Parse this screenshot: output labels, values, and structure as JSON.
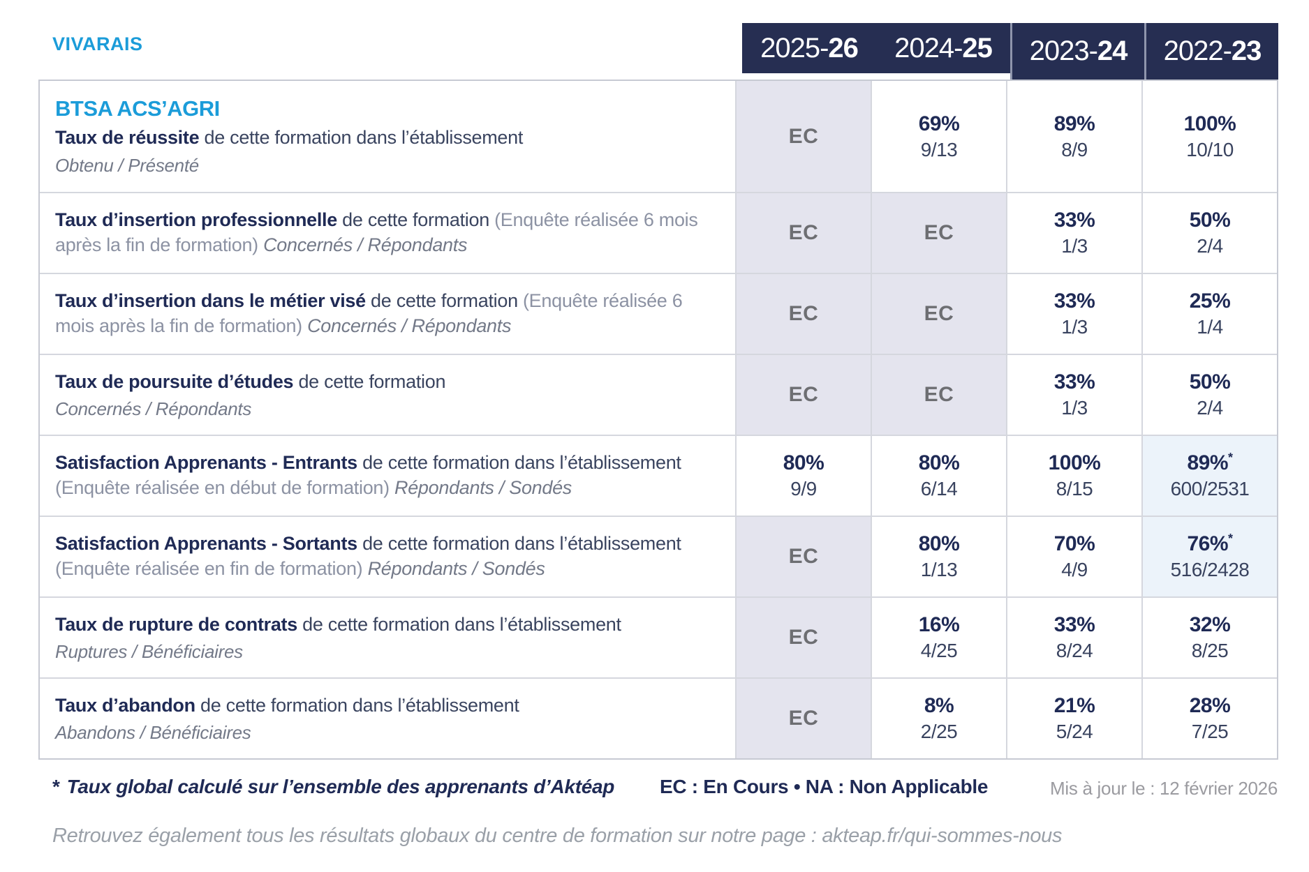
{
  "brand": "VIVARAIS",
  "columns": [
    {
      "label": "2025-26",
      "prefix": "2025-",
      "bold": "26"
    },
    {
      "label": "2024-25",
      "prefix": "2024-",
      "bold": "25"
    },
    {
      "label": "2023-24",
      "prefix": "2023-",
      "bold": "24"
    },
    {
      "label": "2022-23",
      "prefix": "2022-",
      "bold": "23"
    }
  ],
  "program_title": "BTSA ACS’AGRI",
  "rows": [
    {
      "segments": [
        {
          "type": "title",
          "text": "Taux de réussite"
        },
        {
          "type": "normal",
          "text": " de cette formation dans l’établissement"
        }
      ],
      "subline": "Obtenu / Présenté",
      "values": [
        {
          "ec": true,
          "text": "EC"
        },
        {
          "pct": "69%",
          "frac": "9/13"
        },
        {
          "pct": "89%",
          "frac": "8/9"
        },
        {
          "pct": "100%",
          "frac": "10/10"
        }
      ]
    },
    {
      "segments": [
        {
          "type": "title",
          "text": "Taux d’insertion professionnelle"
        },
        {
          "type": "normal",
          "text": " de cette formation "
        },
        {
          "type": "muted",
          "text": "(Enquête réalisée 6 mois après la fin de formation) "
        },
        {
          "type": "italic",
          "text": "Concernés / Répondants"
        }
      ],
      "subline": null,
      "values": [
        {
          "ec": true,
          "text": "EC"
        },
        {
          "ec": true,
          "text": "EC"
        },
        {
          "pct": "33%",
          "frac": "1/3"
        },
        {
          "pct": "50%",
          "frac": "2/4"
        }
      ]
    },
    {
      "segments": [
        {
          "type": "title",
          "text": "Taux d’insertion dans le métier visé"
        },
        {
          "type": "normal",
          "text": " de cette formation "
        },
        {
          "type": "muted",
          "text": "(Enquête réalisée 6 mois après la fin de formation) "
        },
        {
          "type": "italic",
          "text": "Concernés / Répondants"
        }
      ],
      "subline": null,
      "values": [
        {
          "ec": true,
          "text": "EC"
        },
        {
          "ec": true,
          "text": "EC"
        },
        {
          "pct": "33%",
          "frac": "1/3"
        },
        {
          "pct": "25%",
          "frac": "1/4"
        }
      ]
    },
    {
      "segments": [
        {
          "type": "title",
          "text": "Taux de poursuite d’études"
        },
        {
          "type": "normal",
          "text": " de cette formation"
        }
      ],
      "subline": "Concernés / Répondants",
      "values": [
        {
          "ec": true,
          "text": "EC"
        },
        {
          "ec": true,
          "text": "EC"
        },
        {
          "pct": "33%",
          "frac": "1/3"
        },
        {
          "pct": "50%",
          "frac": "2/4"
        }
      ]
    },
    {
      "segments": [
        {
          "type": "title",
          "text": "Satisfaction Apprenants - Entrants"
        },
        {
          "type": "normal",
          "text": " de cette formation dans l’établissement "
        },
        {
          "type": "muted",
          "text": "(Enquête réalisée en début de formation) "
        },
        {
          "type": "italic",
          "text": "Répondants / Sondés"
        }
      ],
      "subline": null,
      "values": [
        {
          "pct": "80%",
          "frac": "9/9"
        },
        {
          "pct": "80%",
          "frac": "6/14"
        },
        {
          "pct": "100%",
          "frac": "8/15"
        },
        {
          "pct": "89%",
          "star": true,
          "frac": "600/2531",
          "highlight": true
        }
      ]
    },
    {
      "segments": [
        {
          "type": "title",
          "text": "Satisfaction Apprenants - Sortants"
        },
        {
          "type": "normal",
          "text": " de cette formation dans l’établissement "
        },
        {
          "type": "muted",
          "text": "(Enquête réalisée en fin de formation) "
        },
        {
          "type": "italic",
          "text": "Répondants / Sondés"
        }
      ],
      "subline": null,
      "values": [
        {
          "ec": true,
          "text": "EC"
        },
        {
          "pct": "80%",
          "frac": "1/13"
        },
        {
          "pct": "70%",
          "frac": "4/9"
        },
        {
          "pct": "76%",
          "star": true,
          "frac": "516/2428",
          "highlight": true
        }
      ]
    },
    {
      "segments": [
        {
          "type": "title",
          "text": "Taux de rupture de contrats"
        },
        {
          "type": "normal",
          "text": " de cette formation dans l’établissement"
        }
      ],
      "subline": "Ruptures / Bénéficiaires",
      "values": [
        {
          "ec": true,
          "text": "EC"
        },
        {
          "pct": "16%",
          "frac": "4/25"
        },
        {
          "pct": "33%",
          "frac": "8/24"
        },
        {
          "pct": "32%",
          "frac": "8/25"
        }
      ]
    },
    {
      "segments": [
        {
          "type": "title",
          "text": "Taux d’abandon"
        },
        {
          "type": "normal",
          "text": " de cette formation dans l’établissement"
        }
      ],
      "subline": "Abandons / Bénéficiaires",
      "values": [
        {
          "ec": true,
          "text": "EC"
        },
        {
          "pct": "8%",
          "frac": "2/25"
        },
        {
          "pct": "21%",
          "frac": "5/24"
        },
        {
          "pct": "28%",
          "frac": "7/25"
        }
      ]
    }
  ],
  "footer": {
    "star": "*",
    "star_note": "Taux global calculé sur l’ensemble des apprenants d’Aktéap",
    "legend": "EC : En Cours  •  NA : Non Applicable",
    "updated": "Mis à jour le : 12 février 2026"
  },
  "bottom_note": "Retrouvez également tous les résultats globaux du centre de formation sur notre page : akteap.fr/qui-sommes-nous",
  "colors": {
    "accent_blue": "#1b9cd9",
    "navy": "#1f2a55",
    "header_background": "#262e52",
    "ec_cell_background": "#e4e4ee",
    "highlight_cell_background": "#ecf3fa",
    "ec_text": "#6d6e72"
  }
}
